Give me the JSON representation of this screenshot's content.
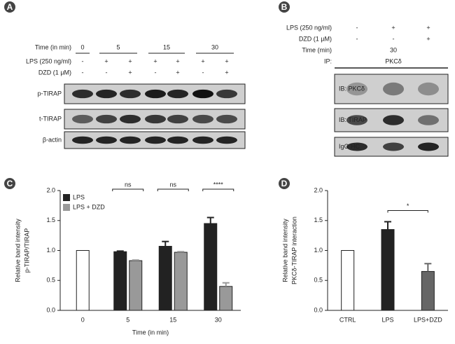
{
  "blot_a": {
    "label": "A",
    "time_label": "Time (in min)",
    "times": [
      "0",
      "5",
      "15",
      "30"
    ],
    "rows": [
      {
        "label": "LPS (250 ng/ml)",
        "marks": [
          "-",
          "+",
          "+",
          "+",
          "+",
          "+",
          "+"
        ]
      },
      {
        "label": "DZD (1 µM)",
        "marks": [
          "-",
          "-",
          "+",
          "-",
          "+",
          "-",
          "+"
        ]
      }
    ],
    "bands": [
      "p-TIRAP",
      "t-TIRAP",
      "β-actin"
    ]
  },
  "blot_b": {
    "label": "B",
    "rows": [
      {
        "label": "LPS (250 ng/ml)",
        "marks": [
          "-",
          "+",
          "+"
        ]
      },
      {
        "label": "DZD (1 µM)",
        "marks": [
          "-",
          "-",
          "+"
        ]
      }
    ],
    "time_label": "Time (min)",
    "time": "30",
    "ip_label": "IP:",
    "ip": "PKCδ",
    "bands": [
      "IB: PKCδ",
      "IB: TIRAP",
      "IgG HC"
    ]
  },
  "chart_data": [
    {
      "type": "bar",
      "panel": "C",
      "y_label": [
        "Relative band intensity",
        "p-TIRAP/TIRAP"
      ],
      "x_label": "Time (in min)",
      "categories": [
        "0",
        "5",
        "15",
        "30"
      ],
      "series": [
        {
          "name": "LPS",
          "color": "#222222",
          "point_colors": [
            "#ffffff",
            "#222222",
            "#222222",
            "#222222"
          ],
          "values": [
            1.0,
            0.98,
            1.07,
            1.45
          ],
          "errors": [
            null,
            0.01,
            0.08,
            0.1
          ]
        },
        {
          "name": "LPS + DZD",
          "color": "#999999",
          "values": [
            null,
            0.83,
            0.97,
            0.4
          ],
          "errors": [
            null,
            0.01,
            0.01,
            0.06
          ]
        }
      ],
      "ylim": [
        0,
        2
      ],
      "yticks": [
        {
          "value": 0,
          "label": "0.0"
        },
        {
          "value": 0.5,
          "label": "0.5"
        },
        {
          "value": 1,
          "label": "1.0"
        },
        {
          "value": 1.5,
          "label": "1.5"
        },
        {
          "value": 2,
          "label": "2.0"
        }
      ],
      "legend": "top-left",
      "significance": [
        {
          "text": "ns",
          "category": 1
        },
        {
          "text": "ns",
          "category": 2
        },
        {
          "text": "****",
          "category": 3
        }
      ]
    },
    {
      "type": "bar",
      "panel": "D",
      "y_label": [
        "Relative band intensity",
        "PKCδ-TIRAP interaction"
      ],
      "categories": [
        "CTRL",
        "LPS",
        "LPS+DZD"
      ],
      "values": [
        1.0,
        1.35,
        0.65
      ],
      "errors": [
        null,
        0.13,
        0.13
      ],
      "colors": [
        "#ffffff",
        "#222222",
        "#666666"
      ],
      "ylim": [
        0,
        2
      ],
      "yticks": [
        {
          "value": 0,
          "label": "0.0"
        },
        {
          "value": 0.5,
          "label": "0.5"
        },
        {
          "value": 1,
          "label": "1.0"
        },
        {
          "value": 1.5,
          "label": "1.5"
        },
        {
          "value": 2,
          "label": "2.0"
        }
      ],
      "significance": [
        {
          "text": "*",
          "between": [
            1,
            2
          ]
        }
      ]
    }
  ]
}
